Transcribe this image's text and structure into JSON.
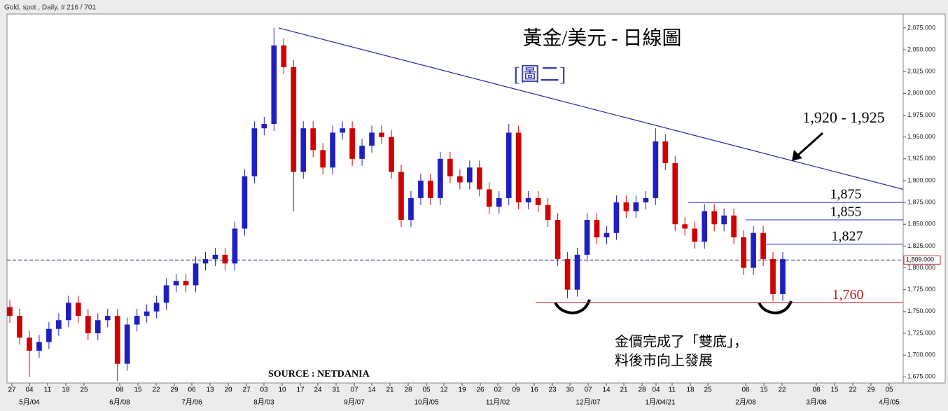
{
  "chart_data": {
    "type": "candlestick",
    "header": "Gold, spot , Daily, # 216 / 701",
    "title": "黃金/美元 - 日線圖",
    "subtitle": "[圖二]",
    "source": "SOURCE : NETDANIA",
    "note": [
      "金價完成了「雙底」，",
      "料後市向上發展"
    ],
    "target_label": "1,920 - 1,925",
    "up_color": "#1f1fbf",
    "down_color": "#d00000",
    "open": [
      1755,
      1745,
      1720,
      1705,
      1715,
      1730,
      1740,
      1760,
      1745,
      1725,
      1740,
      1745,
      1690,
      1735,
      1745,
      1750,
      1760,
      1780,
      1785,
      1780,
      1805,
      1810,
      1815,
      1805,
      1845,
      1905,
      1960,
      1965,
      2055,
      2030,
      1910,
      1960,
      1935,
      1915,
      1955,
      1960,
      1925,
      1940,
      1955,
      1950,
      1910,
      1855,
      1880,
      1900,
      1880,
      1925,
      1905,
      1898,
      1915,
      1890,
      1870,
      1880,
      1955,
      1875,
      1880,
      1872,
      1855,
      1810,
      1775,
      1815,
      1855,
      1835,
      1840,
      1875,
      1865,
      1875,
      1880,
      1945,
      1920,
      1850,
      1845,
      1830,
      1865,
      1850,
      1860,
      1835,
      1800,
      1840,
      1810,
      1770
    ],
    "high": [
      1763,
      1753,
      1728,
      1723,
      1738,
      1748,
      1768,
      1768,
      1753,
      1748,
      1753,
      1753,
      1743,
      1753,
      1758,
      1768,
      1788,
      1793,
      1793,
      1813,
      1818,
      1823,
      1823,
      1853,
      1913,
      1968,
      1973,
      2075,
      2063,
      2038,
      1968,
      1968,
      1943,
      1963,
      1968,
      1968,
      1948,
      1963,
      1963,
      1958,
      1918,
      1888,
      1908,
      1908,
      1933,
      1933,
      1913,
      1923,
      1923,
      1898,
      1888,
      1965,
      1963,
      1888,
      1888,
      1880,
      1863,
      1818,
      1823,
      1863,
      1863,
      1848,
      1883,
      1883,
      1883,
      1888,
      1960,
      1953,
      1928,
      1858,
      1853,
      1873,
      1873,
      1868,
      1868,
      1843,
      1848,
      1848,
      1818,
      1818
    ],
    "low": [
      1737,
      1712,
      1675,
      1697,
      1707,
      1722,
      1732,
      1737,
      1717,
      1717,
      1732,
      1670,
      1682,
      1727,
      1737,
      1742,
      1752,
      1772,
      1772,
      1772,
      1797,
      1802,
      1797,
      1797,
      1837,
      1897,
      1952,
      1957,
      2022,
      1865,
      1902,
      1927,
      1907,
      1907,
      1947,
      1917,
      1917,
      1932,
      1942,
      1902,
      1847,
      1847,
      1872,
      1872,
      1872,
      1897,
      1890,
      1890,
      1882,
      1862,
      1862,
      1872,
      1867,
      1867,
      1864,
      1847,
      1802,
      1765,
      1767,
      1807,
      1827,
      1827,
      1832,
      1857,
      1857,
      1867,
      1872,
      1912,
      1842,
      1837,
      1822,
      1822,
      1842,
      1842,
      1827,
      1792,
      1792,
      1802,
      1762,
      1762
    ],
    "close": [
      1745,
      1720,
      1705,
      1715,
      1730,
      1740,
      1760,
      1745,
      1725,
      1740,
      1745,
      1690,
      1735,
      1745,
      1750,
      1760,
      1780,
      1785,
      1780,
      1805,
      1810,
      1815,
      1805,
      1845,
      1905,
      1960,
      1965,
      2055,
      2030,
      1910,
      1960,
      1935,
      1915,
      1955,
      1960,
      1925,
      1940,
      1955,
      1950,
      1910,
      1855,
      1880,
      1900,
      1880,
      1925,
      1905,
      1898,
      1915,
      1890,
      1870,
      1880,
      1955,
      1875,
      1880,
      1872,
      1855,
      1810,
      1775,
      1815,
      1855,
      1835,
      1840,
      1875,
      1865,
      1875,
      1880,
      1945,
      1920,
      1850,
      1845,
      1830,
      1865,
      1850,
      1860,
      1835,
      1800,
      1840,
      1810,
      1770,
      1810
    ],
    "ylim": [
      1668,
      2091
    ],
    "yticks": [
      {
        "value": 1675,
        "label": "1,675.000"
      },
      {
        "value": 1700,
        "label": "1,700.000"
      },
      {
        "value": 1725,
        "label": "1,725.000"
      },
      {
        "value": 1750,
        "label": "1,750.000"
      },
      {
        "value": 1775,
        "label": "1,775.000"
      },
      {
        "value": 1800,
        "label": "1,800.000"
      },
      {
        "value": 1825,
        "label": "1,825.000"
      },
      {
        "value": 1850,
        "label": "1,850.000"
      },
      {
        "value": 1875,
        "label": "1,875.000"
      },
      {
        "value": 1900,
        "label": "1,900.000"
      },
      {
        "value": 1925,
        "label": "1,925.000"
      },
      {
        "value": 1950,
        "label": "1,950.000"
      },
      {
        "value": 1975,
        "label": "1,975.000"
      },
      {
        "value": 2000,
        "label": "2,000.000"
      },
      {
        "value": 2025,
        "label": "2,025.000"
      },
      {
        "value": 2050,
        "label": "2,050.000"
      },
      {
        "value": 2075,
        "label": "2,075.000"
      }
    ],
    "xtick_labels": [
      "27",
      "04",
      "11",
      "18",
      "25",
      "08",
      "15",
      "22",
      "29",
      "06",
      "13",
      "20",
      "27",
      "03",
      "10",
      "17",
      "24",
      "31",
      "07",
      "14",
      "21",
      "28",
      "05",
      "12",
      "19",
      "26",
      "02",
      "09",
      "16",
      "23",
      "30",
      "07",
      "14",
      "21",
      "28",
      "04",
      "11",
      "18",
      "25",
      "08",
      "15",
      "22",
      "08",
      "15",
      "22",
      "29",
      "05"
    ],
    "month_labels": [
      "5月/04",
      "6月/08",
      "7月/06",
      "8月/03",
      "9月/07",
      "10月/05",
      "11月/02",
      "12月/07",
      "1月/04/21",
      "2月/08",
      "3月/08",
      "4月/05"
    ],
    "current_price": {
      "value": 1809,
      "label": "1,809.000"
    },
    "trendline": [
      2075,
      1890
    ],
    "levels": [
      {
        "value": 1875,
        "label": "1,875",
        "color": "#2b2bd0"
      },
      {
        "value": 1855,
        "label": "1,855",
        "color": "#2b2bd0"
      },
      {
        "value": 1827,
        "label": "1,827",
        "color": "#2b2bd0"
      },
      {
        "value": 1760,
        "label": "1,760",
        "color": "#c01818"
      }
    ]
  }
}
